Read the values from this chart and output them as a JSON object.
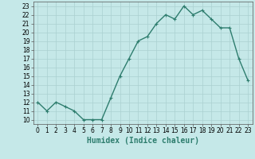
{
  "x": [
    0,
    1,
    2,
    3,
    4,
    5,
    6,
    7,
    8,
    9,
    10,
    11,
    12,
    13,
    14,
    15,
    16,
    17,
    18,
    19,
    20,
    21,
    22,
    23
  ],
  "y": [
    12,
    11,
    12,
    11.5,
    11,
    10,
    10,
    10,
    12.5,
    15,
    17,
    19,
    19.5,
    21,
    22,
    21.5,
    23,
    22,
    22.5,
    21.5,
    20.5,
    20.5,
    17,
    14.5
  ],
  "line_color": "#2e7d6e",
  "marker": "+",
  "background_color": "#c5e8e8",
  "grid_color": "#aad0d0",
  "xlabel": "Humidex (Indice chaleur)",
  "ylim": [
    9.5,
    23.5
  ],
  "xlim": [
    -0.5,
    23.5
  ],
  "yticks": [
    10,
    11,
    12,
    13,
    14,
    15,
    16,
    17,
    18,
    19,
    20,
    21,
    22,
    23
  ],
  "xticks": [
    0,
    1,
    2,
    3,
    4,
    5,
    6,
    7,
    8,
    9,
    10,
    11,
    12,
    13,
    14,
    15,
    16,
    17,
    18,
    19,
    20,
    21,
    22,
    23
  ],
  "tick_fontsize": 5.5,
  "xlabel_fontsize": 7,
  "line_width": 1.0,
  "marker_size": 3
}
